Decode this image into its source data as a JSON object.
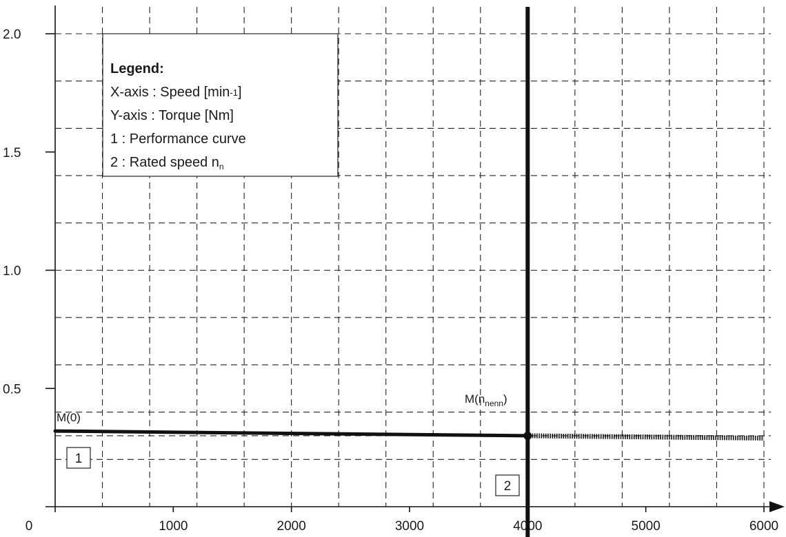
{
  "chart_data": {
    "type": "line",
    "xlim": [
      0,
      6000
    ],
    "ylim": [
      0,
      2.1
    ],
    "x_ticks": [
      {
        "value": 0,
        "label": "0"
      },
      {
        "value": 1000,
        "label": "1000"
      },
      {
        "value": 2000,
        "label": "2000"
      },
      {
        "value": 3000,
        "label": "3000"
      },
      {
        "value": 4000,
        "label": "4000"
      },
      {
        "value": 5000,
        "label": "5000"
      },
      {
        "value": 6000,
        "label": "6000"
      }
    ],
    "y_ticks": [
      {
        "value": 0.5,
        "label": "0.5"
      },
      {
        "value": 1.0,
        "label": "1.0"
      },
      {
        "value": 1.5,
        "label": "1.5"
      },
      {
        "value": 2.0,
        "label": "2.0"
      }
    ],
    "grid": true,
    "grid_x": [
      400,
      800,
      1200,
      1600,
      2000,
      2400,
      2800,
      3200,
      3600,
      4000,
      4400,
      4800,
      5200,
      5600,
      6000
    ],
    "grid_y": [
      0.2,
      0.3,
      0.4,
      0.6,
      0.8,
      1.0,
      1.2,
      1.4,
      1.6,
      1.8,
      2.0
    ],
    "legend": {
      "title": "Legend:",
      "entries": [
        {
          "text": "X-axis : Speed [min",
          "sup": "-1",
          "after": "]"
        },
        {
          "text": "Y-axis : Torque [Nm]",
          "sup": "",
          "after": ""
        },
        {
          "text": "1 : Performance curve",
          "sup": "",
          "after": ""
        },
        {
          "text": "2 : Rated speed n",
          "sub": "n",
          "after": ""
        }
      ],
      "placement": "top-left"
    },
    "series": [
      {
        "id": "performance-curve",
        "marker_label": "1",
        "points": [
          [
            0,
            0.32
          ],
          [
            4000,
            0.3
          ]
        ],
        "style": "solid"
      },
      {
        "id": "performance-curve-extension",
        "points": [
          [
            4000,
            0.3
          ],
          [
            6000,
            0.29
          ]
        ],
        "style": "dotted"
      }
    ],
    "rated_speed": {
      "x": 4000,
      "marker_label": "2"
    },
    "annotations": [
      {
        "id": "m0",
        "text": "M(0)",
        "x": 0,
        "y": 0.32
      },
      {
        "id": "m-nenn",
        "text": "M(n",
        "sub": "nenn",
        "after": ")",
        "x": 4000,
        "y": 0.3
      }
    ],
    "colors": {
      "line": "#111111",
      "grid": "#222222",
      "background": "#ffffff"
    }
  }
}
